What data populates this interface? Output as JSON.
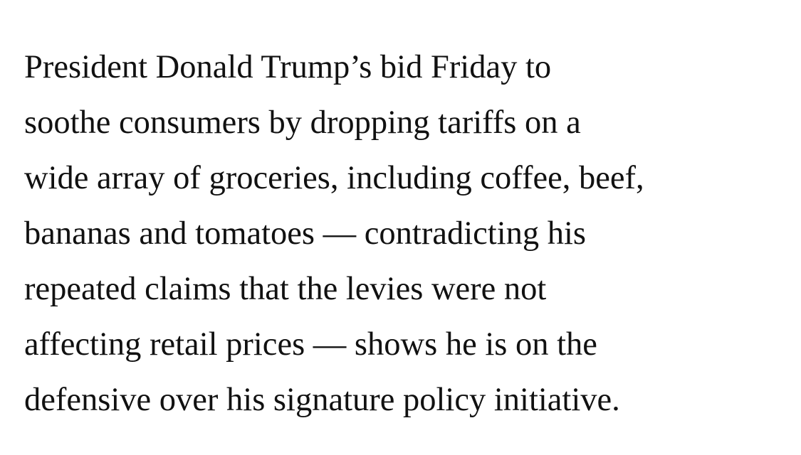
{
  "article": {
    "paragraph_lines": [
      "President Donald Trump’s bid Friday to",
      "soothe consumers by dropping tariffs on a",
      "wide array of groceries, including coffee, beef,",
      "bananas and tomatoes — contradicting his",
      "repeated claims that the levies were not",
      "affecting retail prices — shows he is on the",
      "defensive over his signature policy initiative."
    ]
  }
}
